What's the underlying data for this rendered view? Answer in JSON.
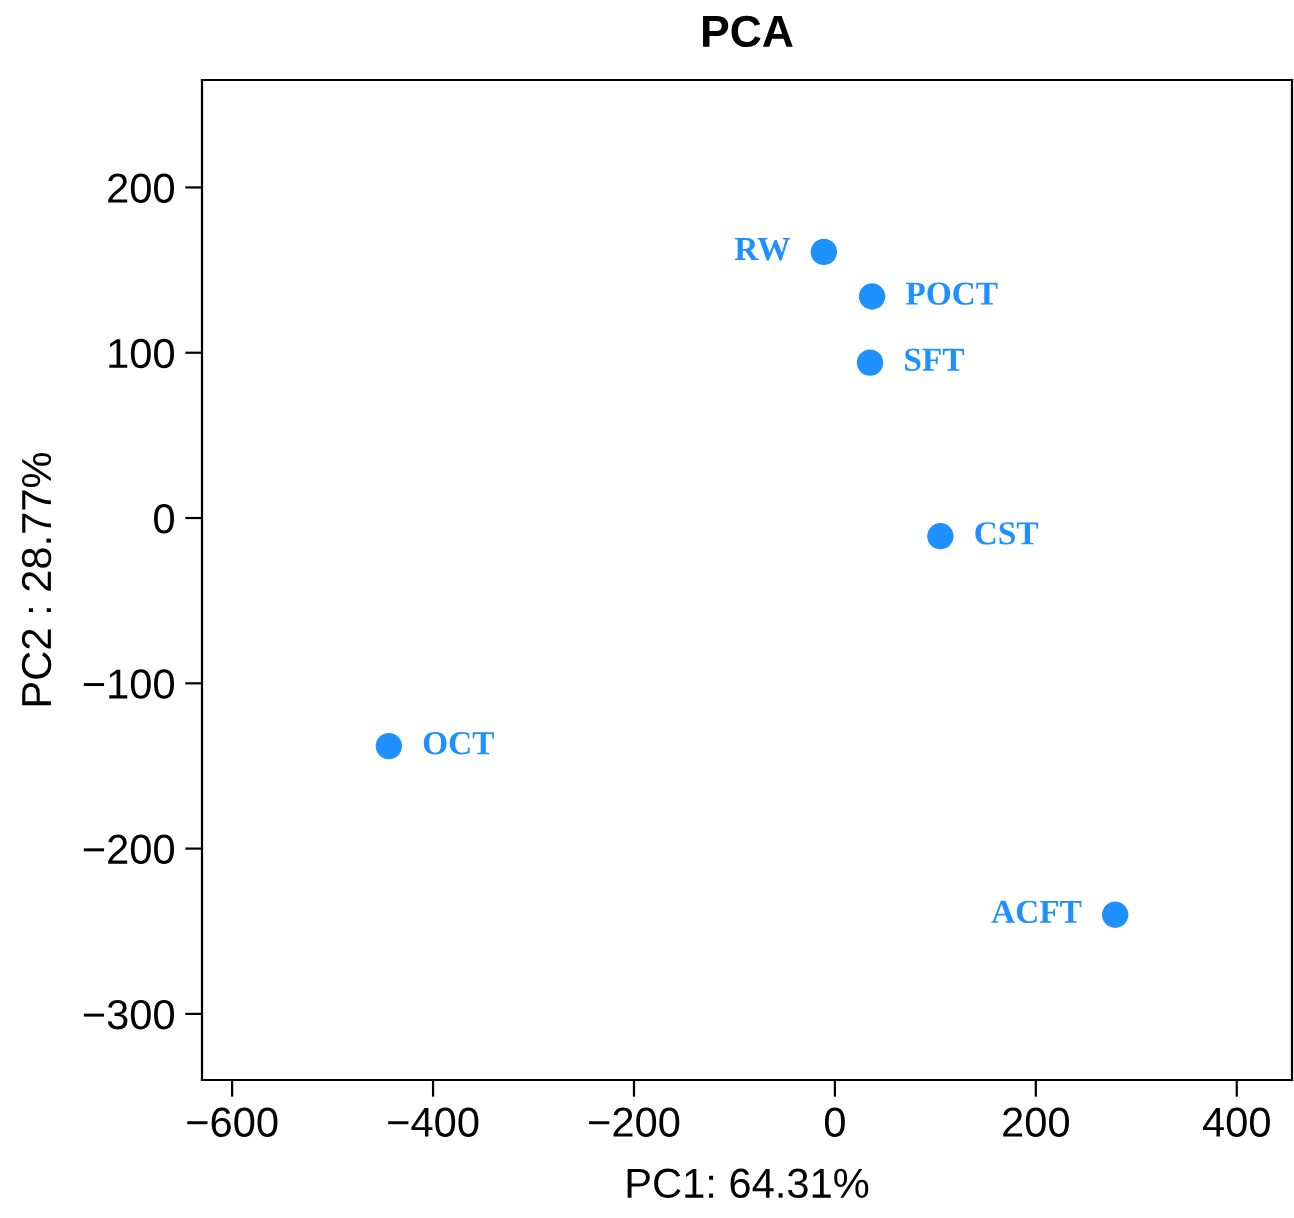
{
  "chart_data": {
    "type": "scatter",
    "title": "PCA",
    "xlabel": "PC1: 64.31%",
    "ylabel": "PC2 : 28.77%",
    "x": [
      -11,
      37,
      35,
      105,
      -444,
      279
    ],
    "series": [
      {
        "color": "#1e90ff",
        "values": [
          161,
          134,
          94,
          -11,
          -138,
          -240
        ]
      }
    ],
    "marker": "circle",
    "xlim": [
      -630,
      455
    ],
    "ylim": [
      -340,
      265
    ],
    "xticks": [
      -600,
      -400,
      -200,
      0,
      200,
      400
    ],
    "yticks": [
      -300,
      -200,
      -100,
      0,
      100,
      200
    ],
    "grid": false,
    "legend": false,
    "annotations": [
      {
        "text": "RW",
        "x": -11,
        "y": 161
      },
      {
        "text": "POCT",
        "x": 37,
        "y": 134
      },
      {
        "text": "SFT",
        "x": 35,
        "y": 94
      },
      {
        "text": "CST",
        "x": 105,
        "y": -11
      },
      {
        "text": "OCT",
        "x": -444,
        "y": -138
      },
      {
        "text": "ACFT",
        "x": 279,
        "y": -240
      }
    ]
  }
}
